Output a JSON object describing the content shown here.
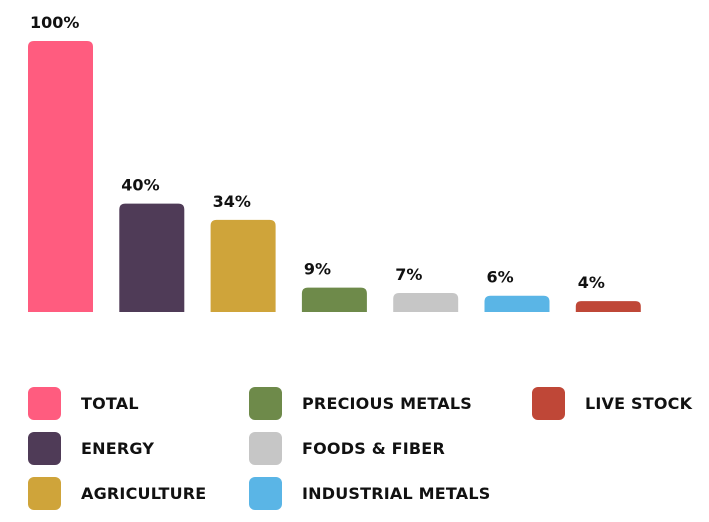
{
  "chart_data": {
    "type": "bar",
    "categories": [
      "TOTAL",
      "ENERGY",
      "AGRICULTURE",
      "PRECIOUS METALS",
      "FOODS & FIBER",
      "INDUSTRIAL METALS",
      "LIVE STOCK"
    ],
    "values": [
      100,
      40,
      34,
      9,
      7,
      6,
      4
    ],
    "data_labels": [
      "100%",
      "40%",
      "34%",
      "9%",
      "7%",
      "6%",
      "4%"
    ],
    "colors": [
      "#ff5c7f",
      "#4f3b57",
      "#cfa43a",
      "#6e8a4a",
      "#c6c6c6",
      "#5ab5e6",
      "#bf4737"
    ],
    "ylim": [
      0,
      100
    ],
    "grid": false,
    "legend_position": "bottom"
  },
  "legend": {
    "items": [
      {
        "label": "TOTAL",
        "color": "#ff5c7f"
      },
      {
        "label": "ENERGY",
        "color": "#4f3b57"
      },
      {
        "label": "AGRICULTURE",
        "color": "#cfa43a"
      },
      {
        "label": "PRECIOUS METALS",
        "color": "#6e8a4a"
      },
      {
        "label": "FOODS & FIBER",
        "color": "#c6c6c6"
      },
      {
        "label": "INDUSTRIAL METALS",
        "color": "#5ab5e6"
      },
      {
        "label": "LIVE STOCK",
        "color": "#bf4737"
      }
    ]
  }
}
